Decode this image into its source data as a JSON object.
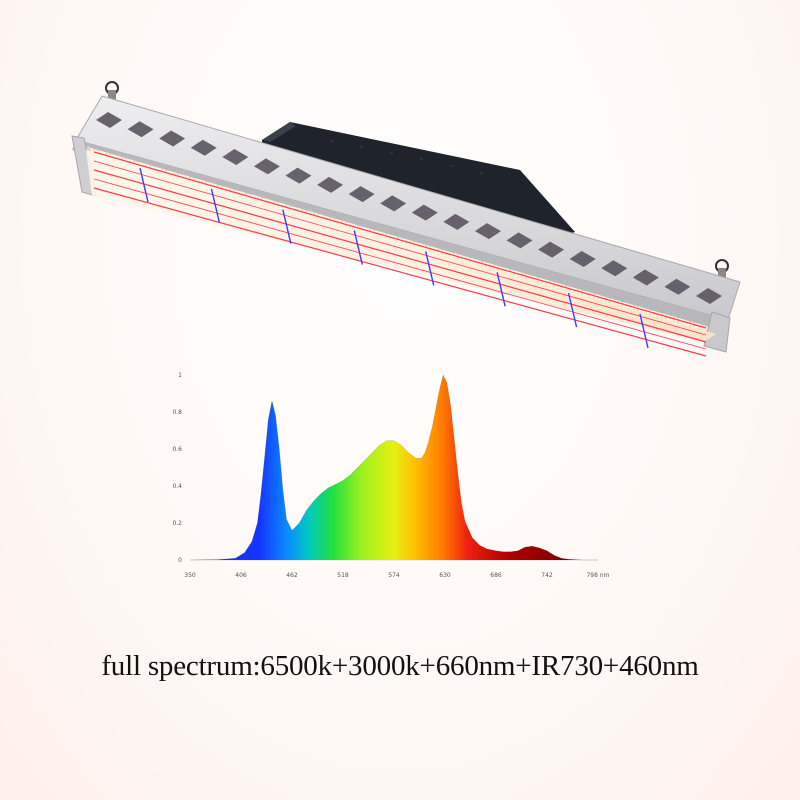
{
  "caption": "full spectrum:6500k+3000k+660nm+IR730+460nm",
  "colors": {
    "frame": "#d9d9dc",
    "driver": "#1f242c",
    "led_board": "#fff3e6",
    "red_led": "#ff3a4a",
    "blue_led": "#3a3cff"
  },
  "chart_data": {
    "type": "area",
    "title": "",
    "xlabel": "",
    "ylabel": "",
    "x_ticks": [
      "350",
      "406",
      "462",
      "518",
      "574",
      "630",
      "686",
      "742",
      "798 nm"
    ],
    "y_ticks": [
      "0",
      "0.2",
      "0.4",
      "0.6",
      "0.8",
      "1"
    ],
    "xlim": [
      350,
      798
    ],
    "ylim": [
      0,
      1
    ],
    "grid": false,
    "series": [
      {
        "x": [
          350,
          380,
          400,
          410,
          418,
          424,
          428,
          432,
          436,
          440,
          444,
          448,
          452,
          456,
          462,
          470,
          478,
          486,
          494,
          502,
          510,
          518,
          526,
          534,
          542,
          550,
          558,
          566,
          574,
          582,
          590,
          598,
          604,
          608,
          612,
          616,
          620,
          624,
          628,
          632,
          636,
          640,
          644,
          648,
          652,
          660,
          668,
          676,
          686,
          694,
          702,
          710,
          718,
          726,
          734,
          742,
          750,
          758,
          766,
          780,
          798
        ],
        "y": [
          0.0,
          0.002,
          0.01,
          0.04,
          0.1,
          0.2,
          0.36,
          0.56,
          0.76,
          0.86,
          0.78,
          0.6,
          0.38,
          0.22,
          0.16,
          0.2,
          0.27,
          0.32,
          0.36,
          0.39,
          0.41,
          0.43,
          0.46,
          0.5,
          0.54,
          0.58,
          0.62,
          0.645,
          0.645,
          0.62,
          0.58,
          0.55,
          0.55,
          0.58,
          0.64,
          0.72,
          0.82,
          0.92,
          1.0,
          0.96,
          0.84,
          0.66,
          0.47,
          0.31,
          0.21,
          0.12,
          0.08,
          0.06,
          0.05,
          0.045,
          0.045,
          0.05,
          0.07,
          0.075,
          0.065,
          0.05,
          0.025,
          0.01,
          0.004,
          0.0,
          0.0
        ]
      }
    ]
  }
}
